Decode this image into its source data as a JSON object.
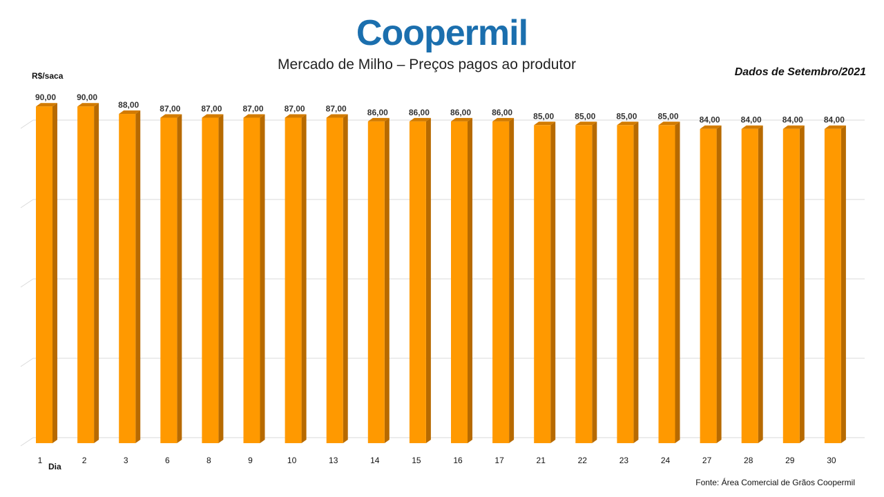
{
  "brand": {
    "logo_text": "Coopermil",
    "logo_color": "#1b6fae"
  },
  "header": {
    "period": "Dados de Setembro/2021"
  },
  "footer": {
    "source": "Fonte:  Área Comercial de Grãos Coopermil"
  },
  "colors": {
    "bar_front": "#ff9900",
    "bar_side": "#b76a00",
    "bar_top": "#d27b00",
    "grid": "#d9d9d9"
  },
  "chart_data": {
    "type": "bar",
    "title": "Mercado de Milho – Preços pagos ao produtor",
    "ylabel": "R$/saca",
    "xlabel": "Dia",
    "categories": [
      "1",
      "2",
      "3",
      "6",
      "8",
      "9",
      "10",
      "13",
      "14",
      "15",
      "16",
      "17",
      "21",
      "22",
      "23",
      "24",
      "27",
      "28",
      "29",
      "30"
    ],
    "values": [
      90,
      90,
      88,
      87,
      87,
      87,
      87,
      87,
      86,
      86,
      86,
      86,
      85,
      85,
      85,
      85,
      84,
      84,
      84,
      84
    ],
    "value_labels": [
      "90,00",
      "90,00",
      "88,00",
      "87,00",
      "87,00",
      "87,00",
      "87,00",
      "87,00",
      "86,00",
      "86,00",
      "86,00",
      "86,00",
      "85,00",
      "85,00",
      "85,00",
      "85,00",
      "84,00",
      "84,00",
      "84,00",
      "84,00"
    ],
    "ylim": [
      0,
      90
    ],
    "grid": true,
    "legend": "none"
  }
}
